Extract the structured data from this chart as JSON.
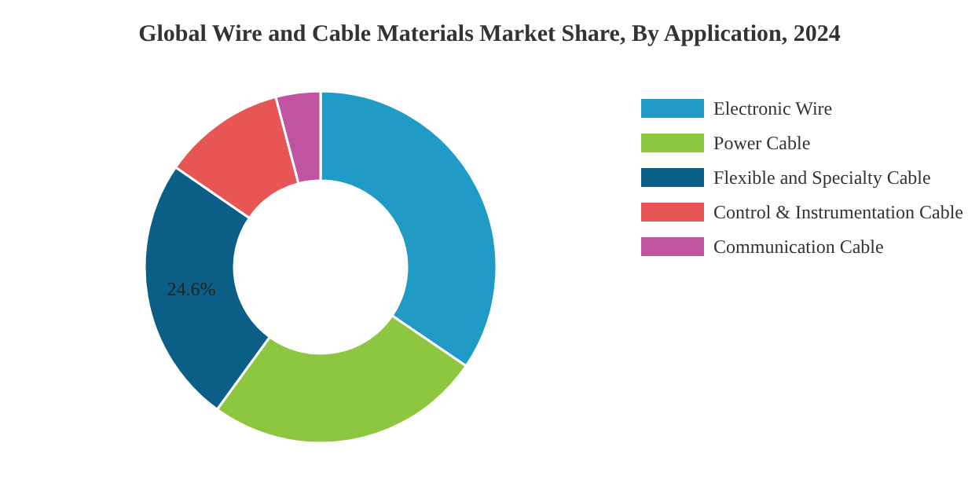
{
  "chart_data": {
    "type": "donut",
    "title": "Global Wire and Cable Materials Market Share, By Application, 2024",
    "categories": [
      "Electronic Wire",
      "Power Cable",
      "Flexible and Specialty Cable",
      "Control & Instrumentation Cable",
      "Communication Cable"
    ],
    "values": [
      34.5,
      25.5,
      24.6,
      11.3,
      4.1
    ],
    "colors": [
      "#1f9bc6",
      "#8dc63f",
      "#0b5f86",
      "#e85555",
      "#c154a0"
    ],
    "value_labels": [
      null,
      null,
      "24.6%",
      null,
      null
    ],
    "legend": "top right"
  }
}
